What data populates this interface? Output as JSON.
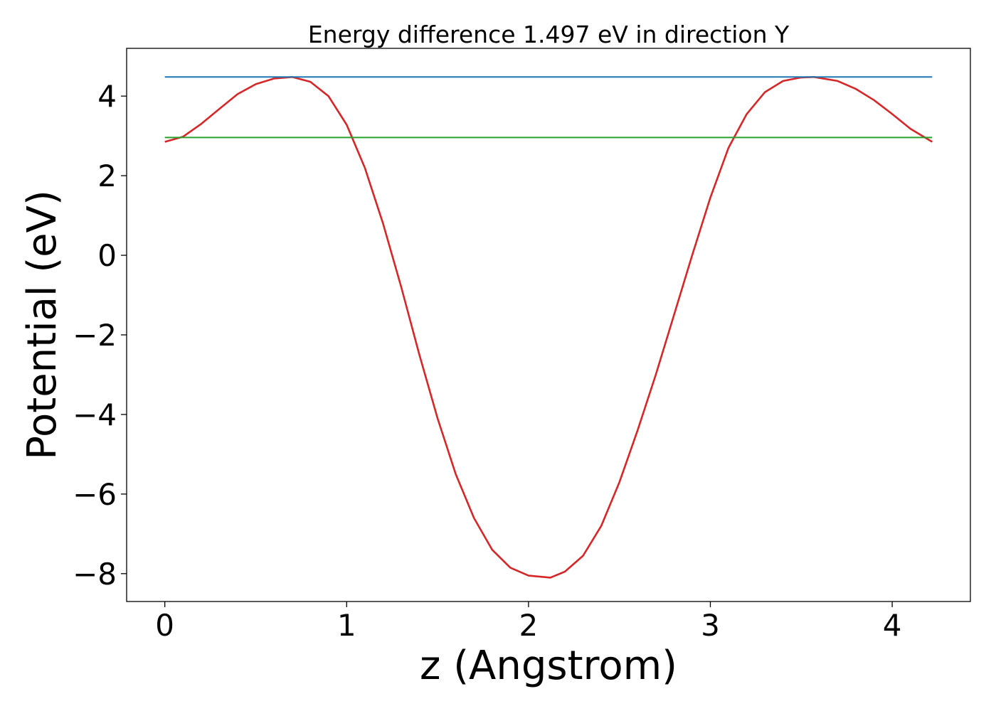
{
  "chart_data": {
    "type": "line",
    "title": "Energy difference 1.497 eV in direction Y",
    "xlabel": "z (Angstrom)",
    "ylabel": "Potential (eV)",
    "xlim": [
      -0.21,
      4.43
    ],
    "ylim": [
      -8.7,
      5.2
    ],
    "x_ticks": [
      0,
      1,
      2,
      3,
      4
    ],
    "y_ticks": [
      -8,
      -6,
      -4,
      -2,
      0,
      2,
      4
    ],
    "grid": false,
    "series": [
      {
        "color": "#d62728",
        "x": [
          0.0,
          0.1,
          0.2,
          0.3,
          0.4,
          0.5,
          0.6,
          0.7,
          0.8,
          0.9,
          1.0,
          1.1,
          1.2,
          1.3,
          1.4,
          1.5,
          1.6,
          1.7,
          1.8,
          1.9,
          2.0,
          2.12,
          2.2,
          2.3,
          2.4,
          2.5,
          2.6,
          2.7,
          2.8,
          2.9,
          3.0,
          3.1,
          3.2,
          3.3,
          3.4,
          3.5,
          3.57,
          3.7,
          3.8,
          3.9,
          4.0,
          4.1,
          4.22
        ],
        "y": [
          2.85,
          2.98,
          3.3,
          3.68,
          4.05,
          4.3,
          4.44,
          4.48,
          4.36,
          4.0,
          3.28,
          2.2,
          0.8,
          -0.8,
          -2.5,
          -4.1,
          -5.5,
          -6.6,
          -7.4,
          -7.85,
          -8.05,
          -8.1,
          -7.95,
          -7.55,
          -6.8,
          -5.7,
          -4.4,
          -3.0,
          -1.5,
          0.0,
          1.45,
          2.7,
          3.55,
          4.1,
          4.38,
          4.47,
          4.48,
          4.38,
          4.18,
          3.9,
          3.55,
          3.18,
          2.85
        ]
      },
      {
        "color": "#1f77b4",
        "x": [
          0.0,
          4.22
        ],
        "y": [
          4.48,
          4.48
        ]
      },
      {
        "color": "#2ca02c",
        "x": [
          0.0,
          4.22
        ],
        "y": [
          2.96,
          2.96
        ]
      }
    ]
  }
}
